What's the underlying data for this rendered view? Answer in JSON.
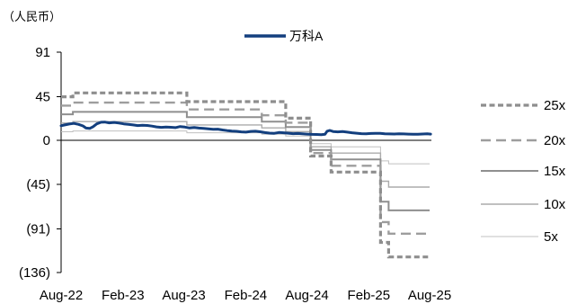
{
  "chart_data": {
    "type": "line",
    "unit_label": "（人民币）",
    "xlim": [
      "2022-08-01",
      "2025-08-01"
    ],
    "ylim": [
      -136,
      91
    ],
    "grid": false,
    "legend_placement": {
      "price": "top",
      "multiples": "right"
    },
    "xticks": [
      {
        "value": "2022-08-01",
        "label": "Aug-22"
      },
      {
        "value": "2023-02-01",
        "label": "Feb-23"
      },
      {
        "value": "2023-08-01",
        "label": "Aug-23"
      },
      {
        "value": "2024-02-01",
        "label": "Feb-24"
      },
      {
        "value": "2024-08-01",
        "label": "Aug-24"
      },
      {
        "value": "2025-02-01",
        "label": "Feb-25"
      },
      {
        "value": "2025-08-01",
        "label": "Aug-25"
      }
    ],
    "yticks": [
      {
        "value": 91,
        "label": "91"
      },
      {
        "value": 45,
        "label": "45"
      },
      {
        "value": 0,
        "label": "0"
      },
      {
        "value": -45,
        "label": "(45)"
      },
      {
        "value": -91,
        "label": "(91)"
      },
      {
        "value": -136,
        "label": "(136)"
      }
    ],
    "price_series": {
      "name": "万科A",
      "color": "#133f7e",
      "points": [
        [
          "2022-08-01",
          15.2
        ],
        [
          "2022-08-12",
          16.0
        ],
        [
          "2022-08-25",
          17.0
        ],
        [
          "2022-09-08",
          17.6
        ],
        [
          "2022-09-22",
          16.6
        ],
        [
          "2022-10-05",
          15.0
        ],
        [
          "2022-10-14",
          12.8
        ],
        [
          "2022-10-25",
          12.4
        ],
        [
          "2022-11-04",
          14.2
        ],
        [
          "2022-11-15",
          17.2
        ],
        [
          "2022-11-28",
          18.8
        ],
        [
          "2022-12-09",
          19.0
        ],
        [
          "2022-12-22",
          18.2
        ],
        [
          "2023-01-06",
          18.6
        ],
        [
          "2023-01-20",
          18.0
        ],
        [
          "2023-02-03",
          17.2
        ],
        [
          "2023-02-17",
          16.6
        ],
        [
          "2023-03-03",
          16.0
        ],
        [
          "2023-03-17",
          15.4
        ],
        [
          "2023-03-31",
          15.8
        ],
        [
          "2023-04-14",
          15.5
        ],
        [
          "2023-04-28",
          14.8
        ],
        [
          "2023-05-12",
          14.0
        ],
        [
          "2023-05-26",
          13.5
        ],
        [
          "2023-06-09",
          13.9
        ],
        [
          "2023-06-23",
          13.6
        ],
        [
          "2023-07-07",
          13.3
        ],
        [
          "2023-07-21",
          14.4
        ],
        [
          "2023-08-04",
          13.8
        ],
        [
          "2023-08-18",
          12.9
        ],
        [
          "2023-09-01",
          13.4
        ],
        [
          "2023-09-15",
          12.8
        ],
        [
          "2023-09-29",
          12.4
        ],
        [
          "2023-10-13",
          12.0
        ],
        [
          "2023-10-27",
          11.5
        ],
        [
          "2023-11-10",
          11.7
        ],
        [
          "2023-11-24",
          10.9
        ],
        [
          "2023-12-08",
          10.2
        ],
        [
          "2023-12-22",
          9.7
        ],
        [
          "2024-01-05",
          9.5
        ],
        [
          "2024-01-19",
          8.9
        ],
        [
          "2024-02-02",
          8.6
        ],
        [
          "2024-02-16",
          9.4
        ],
        [
          "2024-03-01",
          9.6
        ],
        [
          "2024-03-15",
          9.0
        ],
        [
          "2024-03-29",
          8.2
        ],
        [
          "2024-04-12",
          7.6
        ],
        [
          "2024-04-26",
          7.4
        ],
        [
          "2024-05-10",
          8.3
        ],
        [
          "2024-05-24",
          8.0
        ],
        [
          "2024-06-07",
          7.5
        ],
        [
          "2024-06-21",
          7.1
        ],
        [
          "2024-07-05",
          7.2
        ],
        [
          "2024-07-19",
          6.9
        ],
        [
          "2024-08-02",
          6.6
        ],
        [
          "2024-08-16",
          6.3
        ],
        [
          "2024-08-30",
          6.2
        ],
        [
          "2024-09-13",
          6.0
        ],
        [
          "2024-09-24",
          6.5
        ],
        [
          "2024-09-30",
          9.6
        ],
        [
          "2024-10-08",
          10.4
        ],
        [
          "2024-10-18",
          9.3
        ],
        [
          "2024-11-01",
          8.9
        ],
        [
          "2024-11-15",
          9.2
        ],
        [
          "2024-11-29",
          8.6
        ],
        [
          "2024-12-13",
          8.0
        ],
        [
          "2024-12-27",
          7.5
        ],
        [
          "2025-01-10",
          7.1
        ],
        [
          "2025-01-24",
          6.9
        ],
        [
          "2025-02-07",
          7.2
        ],
        [
          "2025-02-21",
          7.3
        ],
        [
          "2025-03-07",
          7.4
        ],
        [
          "2025-03-21",
          7.0
        ],
        [
          "2025-04-04",
          6.8
        ],
        [
          "2025-04-18",
          6.7
        ],
        [
          "2025-05-02",
          6.9
        ],
        [
          "2025-05-16",
          6.8
        ],
        [
          "2025-05-30",
          6.6
        ],
        [
          "2025-06-13",
          6.5
        ],
        [
          "2025-06-27",
          6.4
        ],
        [
          "2025-07-11",
          6.7
        ],
        [
          "2025-07-25",
          6.9
        ],
        [
          "2025-08-04",
          6.6
        ]
      ]
    },
    "pe_bands": {
      "step_dates": [
        "2022-08-01",
        "2022-09-05",
        "2023-08-10",
        "2024-03-20",
        "2024-05-30",
        "2024-08-12",
        "2024-10-12",
        "2025-03-08",
        "2025-04-01",
        "2025-08-01"
      ],
      "series": [
        {
          "name": "25x",
          "color": "#8e8e8e",
          "values": [
            45,
            49,
            40,
            40,
            23,
            -16,
            -32.5,
            -105,
            -120
          ]
        },
        {
          "name": "20x",
          "color": "#9d9d9d",
          "values": [
            36,
            39,
            32,
            26,
            18.4,
            -13,
            -26,
            -84,
            -96
          ]
        },
        {
          "name": "15x",
          "color": "#8f8f8f",
          "values": [
            27,
            29.5,
            24,
            19.5,
            13.8,
            -9.8,
            -19.5,
            -63,
            -72
          ]
        },
        {
          "name": "10x",
          "color": "#ababab",
          "values": [
            18,
            19.5,
            16,
            13,
            9.2,
            -6.5,
            -13,
            -42,
            -48
          ]
        },
        {
          "name": "5x",
          "color": "#c0c0c0",
          "values": [
            9,
            9.8,
            8,
            6.5,
            4.6,
            -3.3,
            -6.5,
            -21,
            -24
          ]
        }
      ]
    }
  }
}
